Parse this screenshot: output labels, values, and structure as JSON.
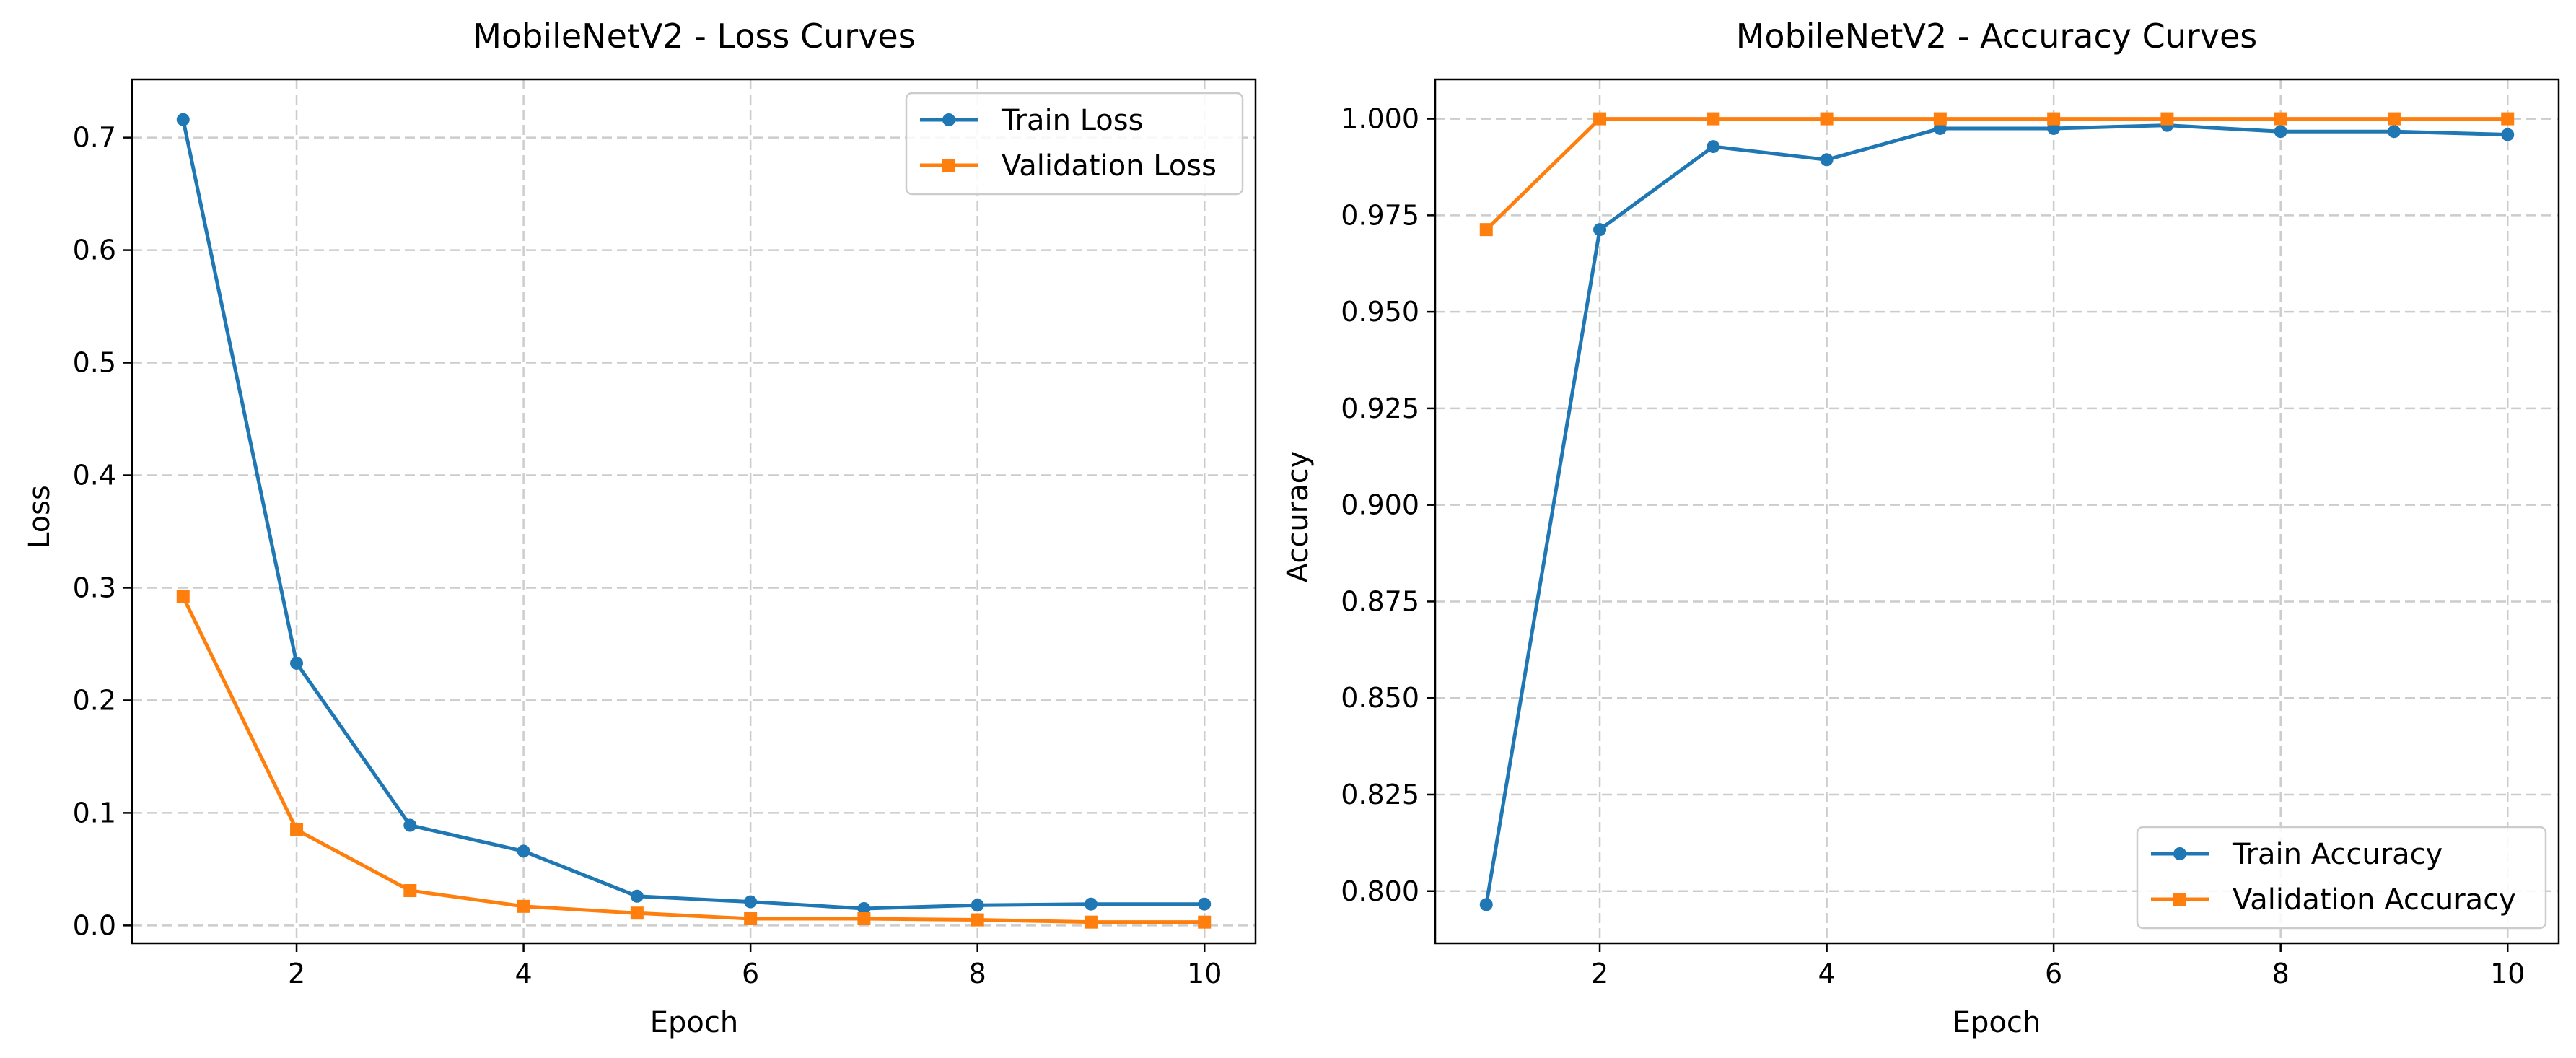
{
  "chart_data": [
    {
      "type": "line",
      "title": "MobileNetV2 - Loss Curves",
      "xlabel": "Epoch",
      "ylabel": "Loss",
      "xlim": [
        0.55,
        10.45
      ],
      "ylim": [
        -0.0158,
        0.7517
      ],
      "xticks": [
        2,
        4,
        6,
        8,
        10
      ],
      "xtick_labels": [
        "2",
        "4",
        "6",
        "8",
        "10"
      ],
      "yticks": [
        0.0,
        0.1,
        0.2,
        0.3,
        0.4,
        0.5,
        0.6,
        0.7
      ],
      "ytick_labels": [
        "0.0",
        "0.1",
        "0.2",
        "0.3",
        "0.4",
        "0.5",
        "0.6",
        "0.7"
      ],
      "grid": true,
      "legend_position": "top-right",
      "x": [
        1,
        2,
        3,
        4,
        5,
        6,
        7,
        8,
        9,
        10
      ],
      "series": [
        {
          "name": "Train Loss",
          "color": "#1f77b4",
          "marker": "circle",
          "values": [
            0.716,
            0.233,
            0.089,
            0.066,
            0.026,
            0.021,
            0.015,
            0.018,
            0.019,
            0.019
          ]
        },
        {
          "name": "Validation Loss",
          "color": "#ff7f0e",
          "marker": "square",
          "values": [
            0.292,
            0.085,
            0.031,
            0.017,
            0.011,
            0.006,
            0.006,
            0.005,
            0.003,
            0.003
          ]
        }
      ]
    },
    {
      "type": "line",
      "title": "MobileNetV2 - Accuracy Curves",
      "xlabel": "Epoch",
      "ylabel": "Accuracy",
      "xlim": [
        0.55,
        10.45
      ],
      "ylim": [
        0.7865,
        1.0102
      ],
      "xticks": [
        2,
        4,
        6,
        8,
        10
      ],
      "xtick_labels": [
        "2",
        "4",
        "6",
        "8",
        "10"
      ],
      "yticks": [
        0.8,
        0.825,
        0.85,
        0.875,
        0.9,
        0.925,
        0.95,
        0.975,
        1.0
      ],
      "ytick_labels": [
        "0.800",
        "0.825",
        "0.850",
        "0.875",
        "0.900",
        "0.925",
        "0.950",
        "0.975",
        "1.000"
      ],
      "grid": true,
      "legend_position": "bottom-right",
      "x": [
        1,
        2,
        3,
        4,
        5,
        6,
        7,
        8,
        9,
        10
      ],
      "series": [
        {
          "name": "Train Accuracy",
          "color": "#1f77b4",
          "marker": "circle",
          "values": [
            0.7965,
            0.9713,
            0.9928,
            0.9894,
            0.9975,
            0.9975,
            0.9983,
            0.9967,
            0.9967,
            0.9959
          ]
        },
        {
          "name": "Validation Accuracy",
          "color": "#ff7f0e",
          "marker": "square",
          "values": [
            0.9713,
            1.0,
            1.0,
            1.0,
            1.0,
            1.0,
            1.0,
            1.0,
            1.0,
            1.0
          ]
        }
      ]
    }
  ]
}
